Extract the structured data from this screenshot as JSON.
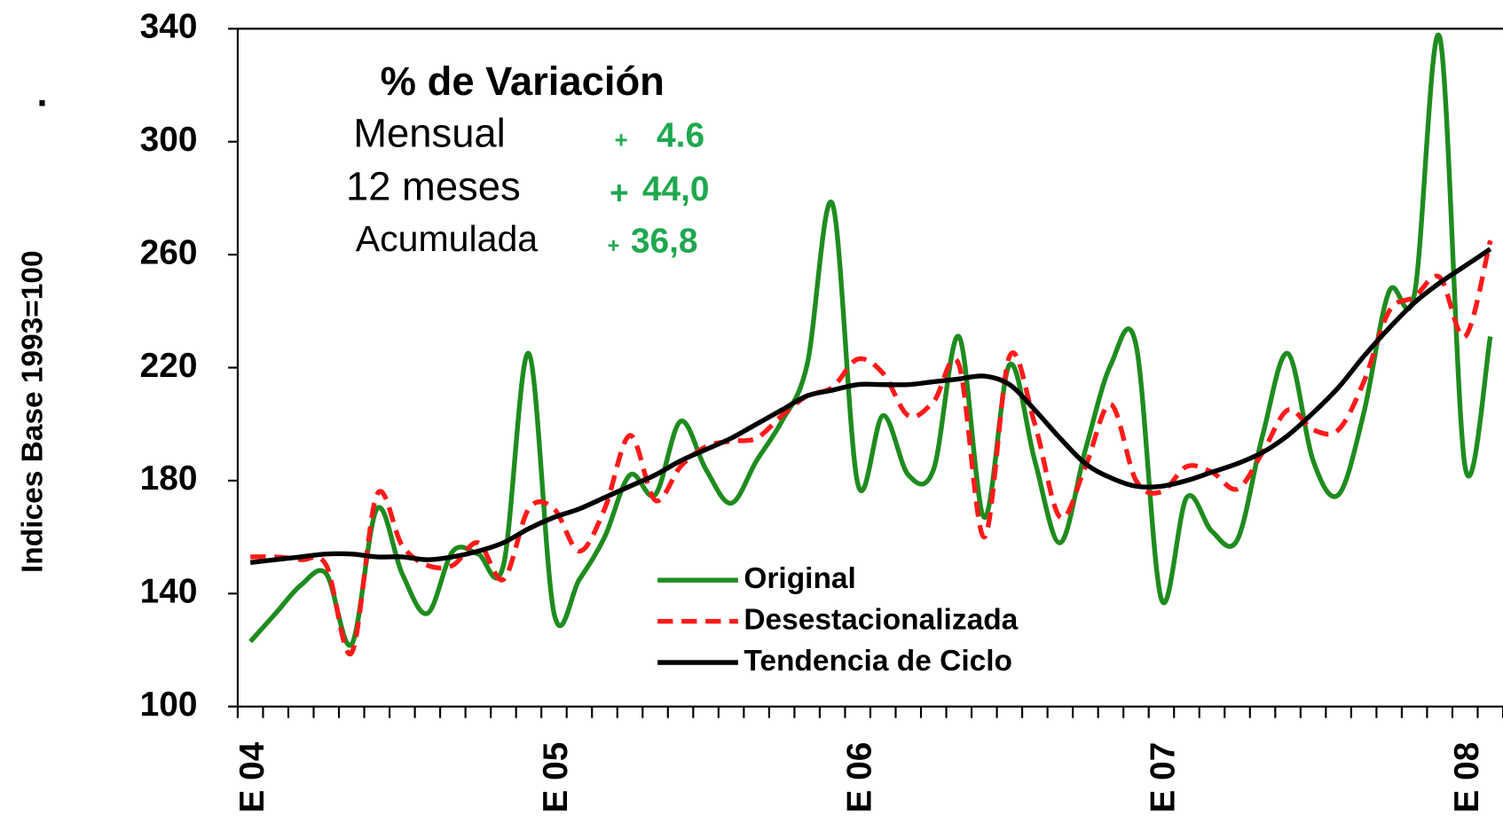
{
  "chart_data": {
    "type": "line",
    "y_label": "Indices Base 1993=100",
    "mark": ".",
    "panel_title": "% de Variación",
    "variation": [
      {
        "label": "Mensual",
        "sign": "+",
        "value": "4.6"
      },
      {
        "label": "12 meses",
        "sign": "+",
        "value": "44,0"
      },
      {
        "label": "Acumulada",
        "sign": "+",
        "value": "36,8"
      }
    ],
    "categories": [
      "E 04",
      null,
      null,
      null,
      null,
      null,
      null,
      null,
      null,
      null,
      null,
      null,
      "E 05",
      null,
      null,
      null,
      null,
      null,
      null,
      null,
      null,
      null,
      null,
      null,
      "E 06",
      null,
      null,
      null,
      null,
      null,
      null,
      null,
      null,
      null,
      null,
      null,
      "E 07",
      null,
      null,
      null,
      null,
      null,
      null,
      null,
      null,
      null,
      null,
      null,
      "E 08",
      null
    ],
    "ylim": [
      100,
      340
    ],
    "yticks": [
      100,
      140,
      180,
      220,
      260,
      300,
      340
    ],
    "series": [
      {
        "name": "Original",
        "color": "#1e8c1e",
        "dash": "solid",
        "values": [
          123,
          133,
          143,
          147,
          122,
          170,
          147,
          133,
          155,
          154,
          150,
          225,
          133,
          145,
          160,
          182,
          175,
          201,
          184,
          172,
          187,
          201,
          221,
          278,
          179,
          203,
          182,
          184,
          231,
          167,
          221,
          187,
          158,
          191,
          221,
          228,
          138,
          174,
          162,
          159,
          196,
          225,
          187,
          175,
          204,
          247,
          246,
          337,
          185,
          231
        ]
      },
      {
        "name": "Desestacionalizada",
        "color": "#ff1a1a",
        "dash": "dashed",
        "values": [
          153,
          153,
          152,
          150,
          119,
          175,
          157,
          150,
          150,
          158,
          145,
          170,
          170,
          155,
          170,
          196,
          173,
          185,
          192,
          194,
          195,
          203,
          210,
          213,
          223,
          218,
          203,
          208,
          221,
          160,
          224,
          200,
          167,
          185,
          207,
          180,
          176,
          185,
          183,
          177,
          190,
          205,
          198,
          198,
          215,
          240,
          245,
          252,
          231,
          265
        ]
      },
      {
        "name": "Tendencia de Ciclo",
        "color": "#000000",
        "dash": "solid",
        "values": [
          151,
          152,
          153,
          154,
          154,
          153,
          153,
          152,
          153,
          155,
          158,
          163,
          167,
          170,
          174,
          178,
          182,
          187,
          191,
          195,
          200,
          205,
          210,
          212,
          214,
          214,
          214,
          215,
          216,
          217,
          214,
          205,
          195,
          186,
          181,
          178,
          178,
          180,
          183,
          186,
          190,
          196,
          204,
          213,
          224,
          234,
          243,
          250,
          256,
          262
        ]
      }
    ]
  }
}
